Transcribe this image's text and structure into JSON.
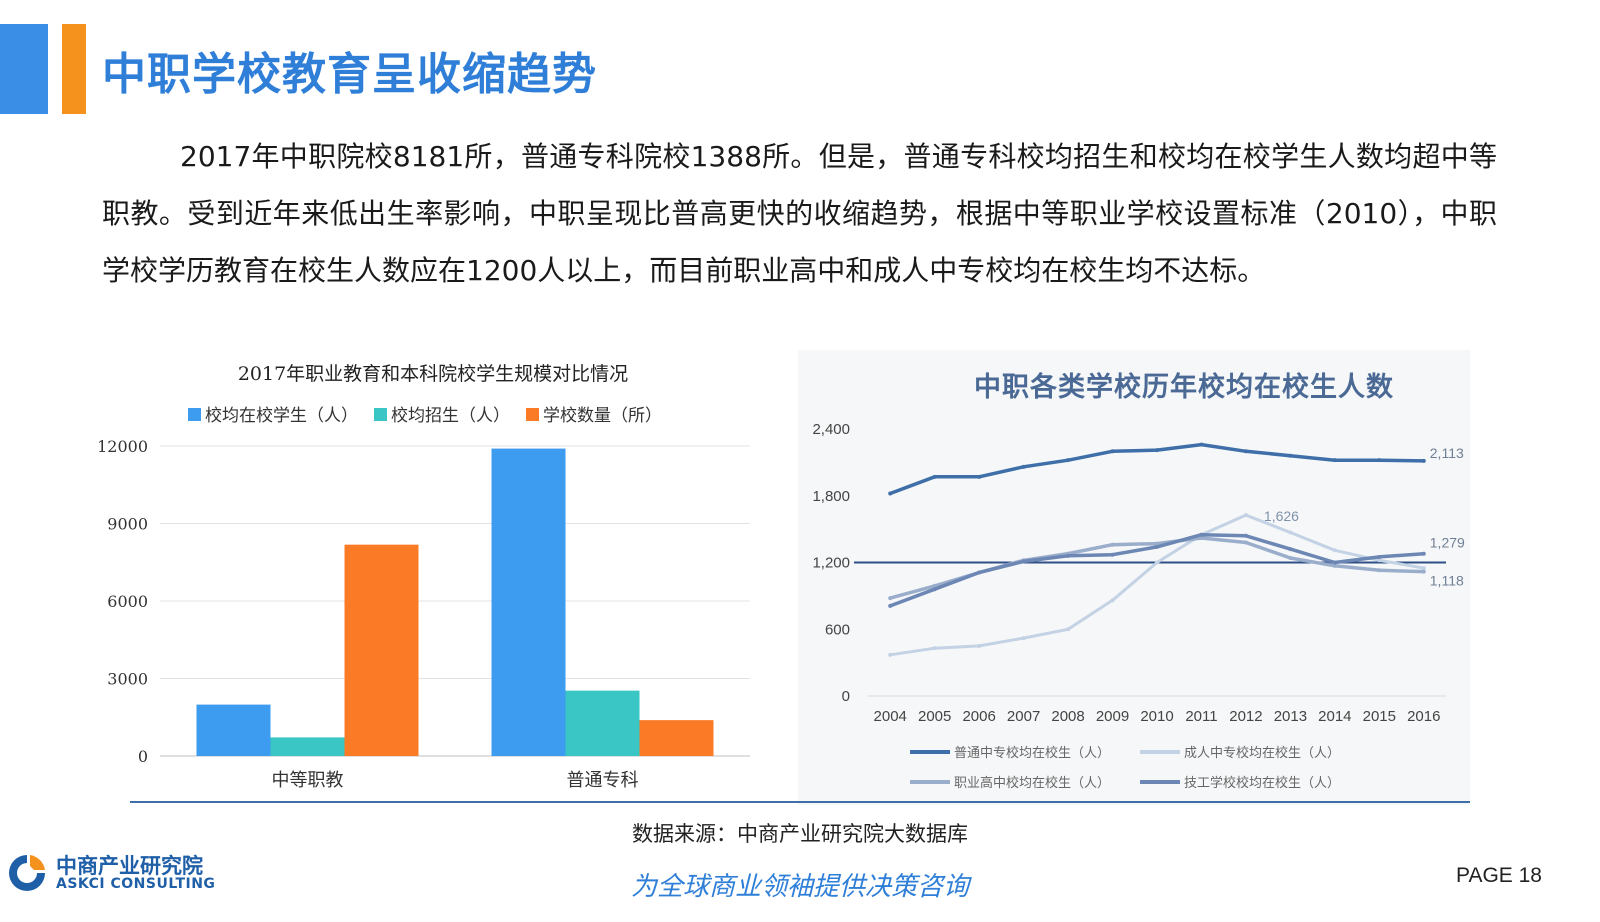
{
  "page": {
    "title": "中职学校教育呈收缩趋势",
    "paragraph": "2017年中职院校8181所，普通专科院校1388所。但是，普通专科校均招生和校均在校学生人数均超中等职教。受到近年来低出生率影响，中职呈现比普高更快的收缩趋势，根据中等职业学校设置标准（2010），中职学校学历教育在校生人数应在1200人以上，而目前职业高中和成人中专校均在校生均不达标。",
    "source": "数据来源：中商产业研究院大数据库",
    "slogan": "为全球商业领袖提供决策咨询",
    "page_number": "PAGE  18",
    "logo": {
      "cn": "中商产业研究院",
      "en": "ASKCI CONSULTING"
    },
    "colors": {
      "title": "#2f7fd8",
      "accent_blue": "#3a8ee6",
      "accent_orange": "#f5921e"
    }
  },
  "chart_data": [
    {
      "type": "bar",
      "title": "2017年职业教育和本科院校学生规模对比情况",
      "categories": [
        "中等职教",
        "普通专科"
      ],
      "series": [
        {
          "name": "校均在校学生（人）",
          "values": [
            1990,
            11900
          ],
          "color": "#3d9bf0"
        },
        {
          "name": "校均招生（人）",
          "values": [
            720,
            2530
          ],
          "color": "#39c6c4"
        },
        {
          "name": "学校数量（所）",
          "values": [
            8181,
            1388
          ],
          "color": "#fb7a25"
        }
      ],
      "ylim": [
        0,
        12000
      ],
      "yticks": [
        "0",
        "3000",
        "6000",
        "9000",
        "12000"
      ],
      "grid": true,
      "legend": "top"
    },
    {
      "type": "line",
      "title": "中职各类学校历年校均在校生人数",
      "x": [
        "2004",
        "2005",
        "2006",
        "2007",
        "2008",
        "2009",
        "2010",
        "2011",
        "2012",
        "2013",
        "2014",
        "2015",
        "2016"
      ],
      "ylim": [
        0,
        2400
      ],
      "yticks": [
        "0",
        "600",
        "1,200",
        "1,800",
        "2,400"
      ],
      "reference_line": 1200,
      "legend": "bottom",
      "series": [
        {
          "name": "普通中专校均在校生（人）",
          "values": [
            1820,
            1970,
            1970,
            2060,
            2120,
            2200,
            2210,
            2260,
            2200,
            2160,
            2120,
            2120,
            2113
          ],
          "color": "#3f6fa8",
          "end_label": "2,113"
        },
        {
          "name": "成人中专校均在校生（人）",
          "values": [
            370,
            430,
            450,
            520,
            600,
            860,
            1200,
            1450,
            1626,
            1470,
            1310,
            1220,
            1150
          ],
          "color": "#c3d2e4",
          "peak_label": "1,626"
        },
        {
          "name": "职业高中校均在校生（人）",
          "values": [
            880,
            990,
            1110,
            1220,
            1280,
            1360,
            1370,
            1420,
            1380,
            1240,
            1170,
            1130,
            1118
          ],
          "color": "#9aaecc",
          "end_label": "1,118"
        },
        {
          "name": "技工学校校均在校生（人）",
          "values": [
            810,
            960,
            1110,
            1210,
            1260,
            1270,
            1340,
            1450,
            1440,
            1320,
            1200,
            1250,
            1279
          ],
          "color": "#6c87b4",
          "end_label": "1,279"
        }
      ]
    }
  ]
}
